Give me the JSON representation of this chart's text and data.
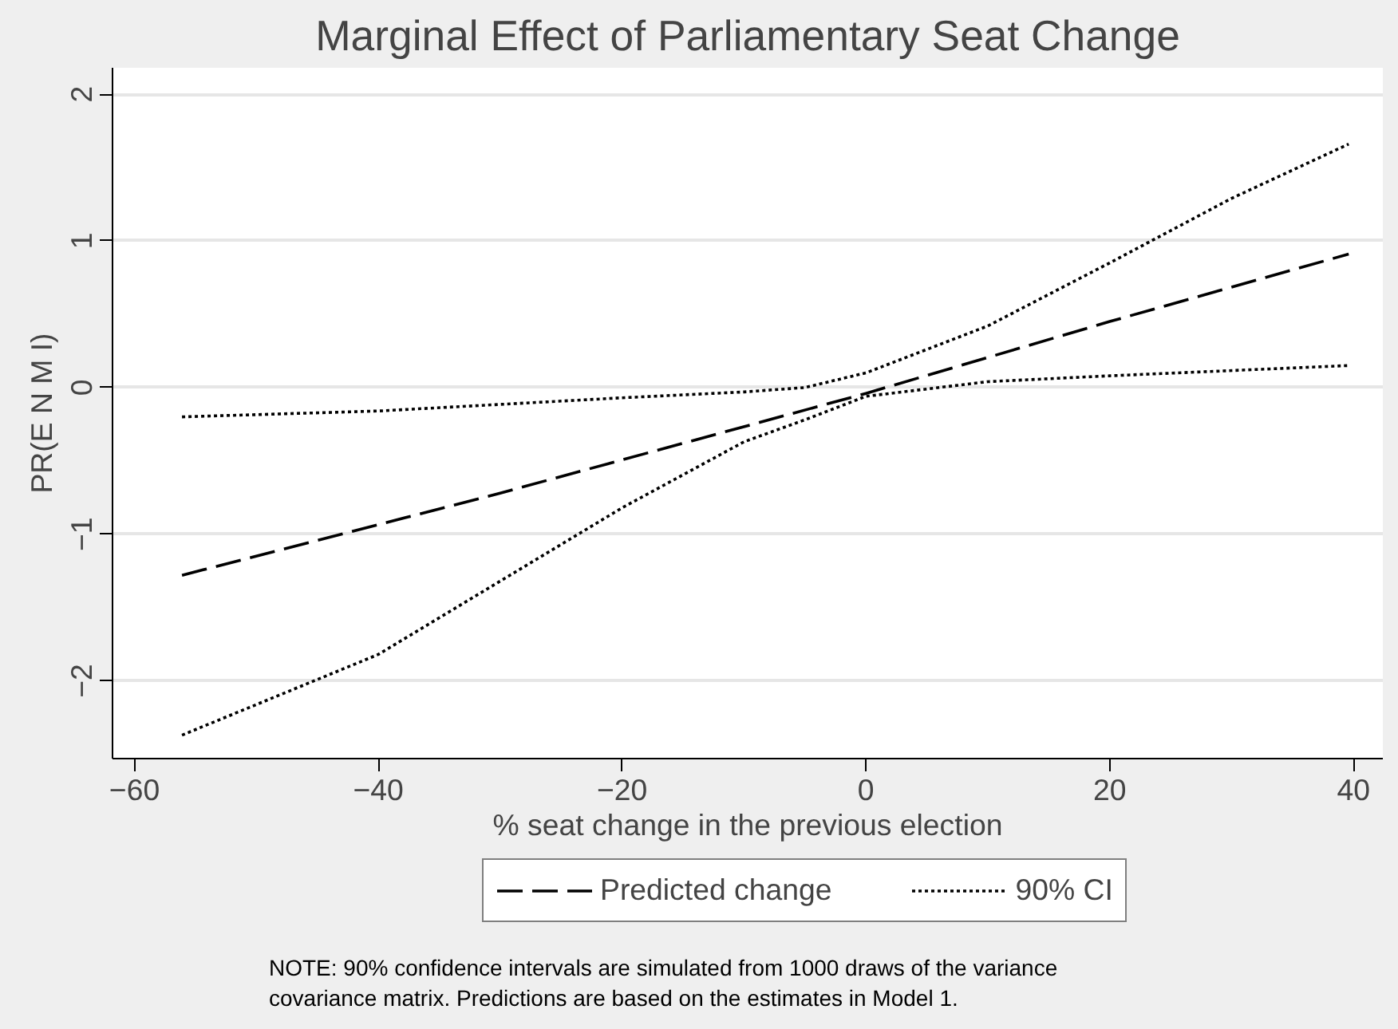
{
  "chart_data": {
    "type": "line",
    "title": "Marginal Effect of Parliamentary Seat Change",
    "xlabel": "% seat change in the previous election",
    "ylabel": "PR(E N M I)",
    "series": [
      {
        "name": "Predicted change",
        "color": "#000000",
        "line_style": "dashed",
        "x": [
          -56.1,
          -30,
          0,
          20,
          39.6
        ],
        "values": [
          -1.28,
          -0.72,
          -0.04,
          0.45,
          0.91
        ]
      },
      {
        "name": "90% CI",
        "color": "#000000",
        "line_style": "dotted",
        "x": [
          -56.1,
          -40,
          -20,
          -10,
          -5,
          0,
          10,
          20,
          30,
          39.6
        ],
        "values": [
          -0.2,
          -0.16,
          -0.07,
          -0.03,
          0.0,
          0.1,
          0.42,
          0.85,
          1.29,
          1.66
        ]
      },
      {
        "color": "#000000",
        "line_style": "dotted",
        "x": [
          -56.1,
          -40,
          -20,
          -10,
          -5,
          0,
          10,
          20,
          39.6
        ],
        "values": [
          -2.37,
          -1.82,
          -0.82,
          -0.37,
          -0.22,
          -0.06,
          0.04,
          0.08,
          0.15
        ]
      }
    ],
    "xlim": [
      -61.8,
      42.4
    ],
    "ylim": [
      -2.53,
      2.18
    ],
    "xticks": [
      -60,
      -40,
      -20,
      0,
      20,
      40
    ],
    "yticks": [
      -2,
      -1,
      0,
      1,
      2
    ],
    "grid": "y",
    "legend": "bottom",
    "marker": "none",
    "annotations": [
      "NOTE: 90% confidence intervals are simulated from 1000 draws of the variance covariance matrix. Predictions are based on the estimates in Model 1."
    ]
  }
}
